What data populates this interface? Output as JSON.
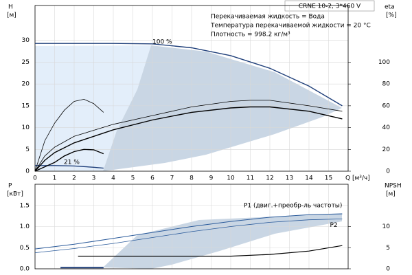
{
  "chart_data": [
    {
      "type": "line",
      "title": "CRNE 10-2, 3*460 V",
      "info": [
        "Перекачиваемая жидкость = Вода",
        "Температура перекачиваемой жидкости = 20 °C",
        "Плотность = 998.2 кг/м³"
      ],
      "annotations": [
        "100 %",
        "21 %"
      ],
      "ylabel": "H",
      "ylabel_unit": "[м]",
      "y2label": "eta",
      "y2label_unit": "[%]",
      "xlabel": "Q [м³/ч]",
      "xlim": [
        0,
        16
      ],
      "xticks": [
        0,
        1,
        2,
        3,
        4,
        5,
        6,
        7,
        8,
        9,
        10,
        11,
        12,
        13,
        14,
        15
      ],
      "ylim": [
        0,
        38
      ],
      "yticks": [
        0,
        5,
        10,
        15,
        20,
        25,
        30
      ],
      "y2lim": [
        0,
        152
      ],
      "y2ticks": [
        0,
        20,
        40,
        60,
        80,
        100
      ],
      "grid": true,
      "series": [
        {
          "color": "#1f3f7a",
          "width": 1.4,
          "x": [
            0,
            2,
            4,
            6,
            8,
            10,
            12,
            14,
            15.7
          ],
          "values": [
            29.3,
            29.3,
            29.3,
            29.2,
            28.3,
            26.5,
            23.6,
            19.5,
            15.0
          ]
        },
        {
          "color": "#1f3f7a",
          "width": 1.4,
          "x": [
            0,
            1,
            2,
            3,
            3.5
          ],
          "values": [
            1.3,
            1.3,
            1.2,
            0.9,
            0.7
          ]
        },
        {
          "color": "#000000",
          "width": 0.8,
          "axis": "y2",
          "x": [
            0,
            0.5,
            1,
            2,
            4,
            6,
            8,
            10,
            11,
            12,
            14,
            15.7
          ],
          "values": [
            0,
            14,
            22,
            32,
            43,
            51,
            59,
            64,
            65,
            65,
            60,
            55
          ]
        },
        {
          "color": "#000000",
          "width": 1.4,
          "axis": "y2",
          "x": [
            0,
            0.5,
            1,
            2,
            4,
            6,
            8,
            10,
            11,
            12,
            14,
            15.7
          ],
          "values": [
            0,
            10,
            17,
            26,
            38,
            47,
            54,
            58,
            59,
            59,
            55,
            48
          ]
        },
        {
          "color": "#000000",
          "width": 0.8,
          "axis": "y2",
          "x": [
            0,
            0.5,
            1,
            1.5,
            2,
            2.5,
            3,
            3.5
          ],
          "values": [
            0,
            28,
            44,
            56,
            64,
            66,
            62,
            54
          ]
        },
        {
          "color": "#000000",
          "width": 1.4,
          "axis": "y2",
          "x": [
            0,
            1,
            1.5,
            2,
            2.5,
            3,
            3.5
          ],
          "values": [
            0,
            8,
            14,
            18,
            20,
            19.6,
            16
          ]
        }
      ]
    },
    {
      "type": "line",
      "ylabel": "P",
      "ylabel_unit": "[кВт]",
      "y2label": "NPSH",
      "y2label_unit": "[м]",
      "xlim": [
        0,
        16
      ],
      "ylim": [
        0,
        2
      ],
      "yticks": [
        {
          "value": 0,
          "label": "0.0"
        },
        0.5,
        {
          "value": 1,
          "label": "1.0"
        },
        1.5
      ],
      "y2lim": [
        0,
        20
      ],
      "y2ticks": [
        0,
        5,
        10
      ],
      "grid": true,
      "series": [
        {
          "name": "P1 (двиг.+преобр-ль частоты)",
          "color": "#2a5a9a",
          "width": 1,
          "x": [
            0,
            2,
            4,
            6,
            8,
            10,
            12,
            14,
            15.7
          ],
          "values": [
            0.47,
            0.58,
            0.72,
            0.86,
            1.0,
            1.12,
            1.22,
            1.28,
            1.3
          ]
        },
        {
          "name": "P2",
          "color": "#2a5a9a",
          "width": 0.8,
          "x": [
            0,
            2,
            4,
            6,
            8,
            10,
            12,
            14,
            15.7
          ],
          "values": [
            0.38,
            0.48,
            0.6,
            0.74,
            0.88,
            1.0,
            1.1,
            1.16,
            1.18
          ]
        },
        {
          "color": "#000000",
          "width": 1.2,
          "axis": "y2",
          "x": [
            2.2,
            6,
            10,
            12,
            14,
            15.7
          ],
          "values": [
            3,
            3,
            3,
            3.4,
            4.2,
            5.5
          ]
        },
        {
          "color": "#1f3f7a",
          "width": 2,
          "x": [
            1.3,
            2,
            3,
            3.5
          ],
          "values": [
            0.03,
            0.03,
            0.03,
            0.03
          ]
        }
      ]
    }
  ]
}
